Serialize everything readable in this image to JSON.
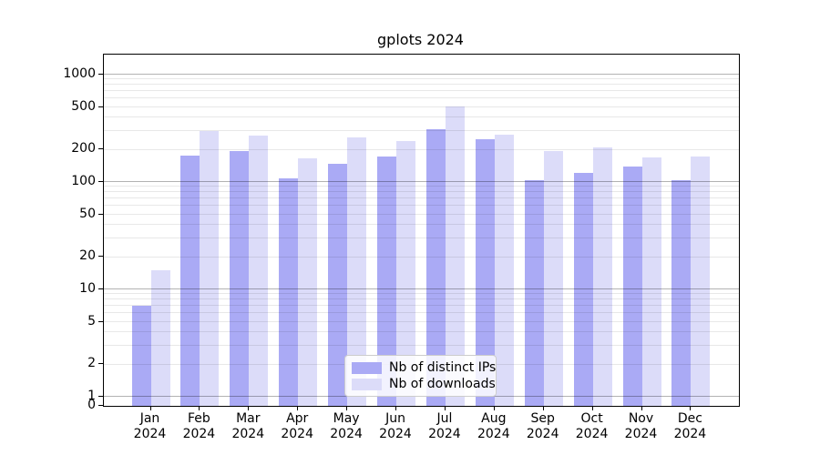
{
  "chart_data": {
    "type": "bar",
    "title": "gplots 2024",
    "categories": [
      "Jan 2024",
      "Feb 2024",
      "Mar 2024",
      "Apr 2024",
      "May 2024",
      "Jun 2024",
      "Jul 2024",
      "Aug 2024",
      "Sep 2024",
      "Oct 2024",
      "Nov 2024",
      "Dec 2024"
    ],
    "series": [
      {
        "name": "Nb of distinct IPs",
        "color": "#aaaaf5",
        "values": [
          7,
          176,
          196,
          108,
          148,
          174,
          310,
          250,
          105,
          122,
          139,
          105
        ]
      },
      {
        "name": "Nb of downloads",
        "color": "#dcdcf9",
        "values": [
          15,
          297,
          273,
          167,
          262,
          243,
          505,
          277,
          195,
          210,
          168,
          174
        ]
      }
    ],
    "y_ticks": [
      0,
      1,
      2,
      5,
      10,
      20,
      50,
      100,
      200,
      500,
      1000
    ],
    "yscale": "symlog (linear 0-1, log above)",
    "ylim": [
      0,
      1535
    ],
    "xlabel": "",
    "ylabel": "",
    "grid": true,
    "legend_position": "lower center"
  },
  "colors": {
    "background": "#ffffff",
    "bar_ips": "#aaaaf5",
    "bar_downloads": "#dcdcf9",
    "grid_major": "rgba(0,0,0,0.30)",
    "grid_minor": "rgba(0,0,0,0.09)",
    "spine": "#000000",
    "text": "#000000",
    "legend_border": "#cccccc"
  }
}
